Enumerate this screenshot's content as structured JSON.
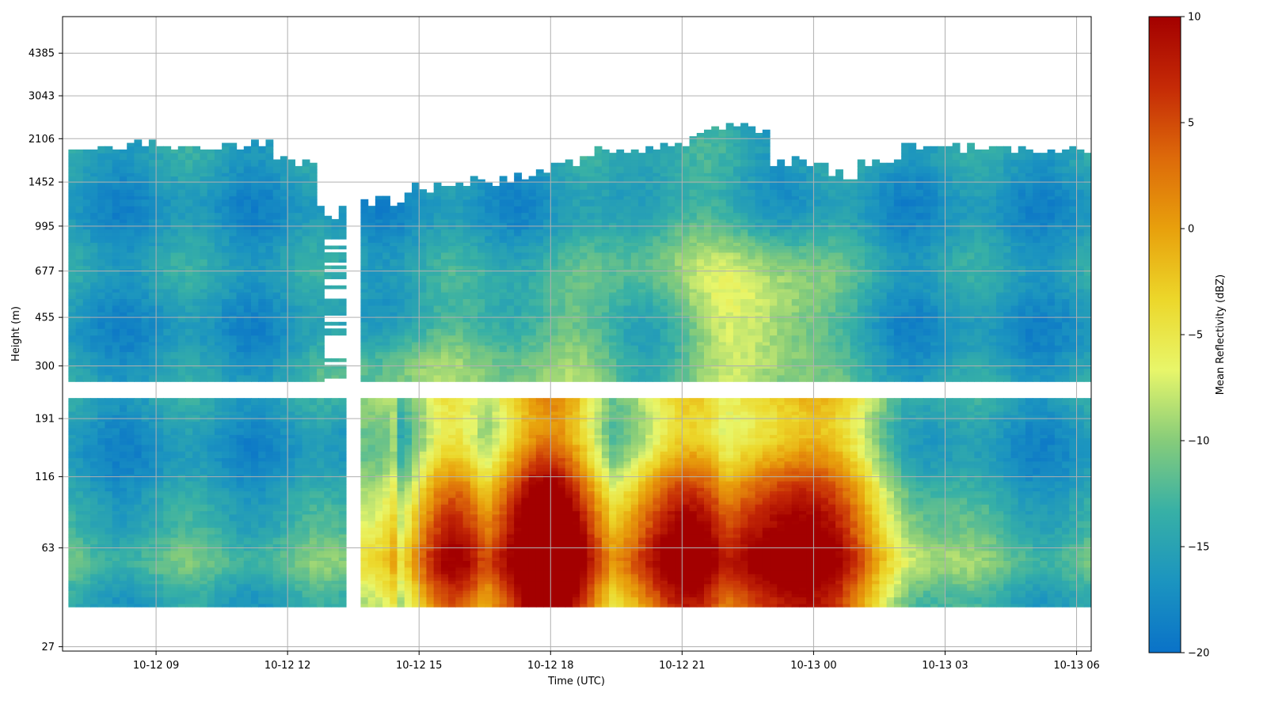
{
  "chart_data": {
    "type": "heatmap",
    "title": "",
    "xlabel": "Time (UTC)",
    "ylabel": "Height (m)",
    "x_range": [
      "10-12 06:52",
      "10-13 06:20"
    ],
    "x_tick_labels": [
      "10-12 09",
      "10-12 12",
      "10-12 15",
      "10-12 18",
      "10-12 21",
      "10-13 00",
      "10-13 03",
      "10-13 06"
    ],
    "x_tick_hours": [
      9,
      12,
      15,
      18,
      21,
      24,
      27,
      30
    ],
    "y_scale": "log",
    "y_range": [
      26,
      6000
    ],
    "y_tick_labels": [
      "27",
      "63",
      "116",
      "191",
      "300",
      "455",
      "677",
      "995",
      "1452",
      "2106",
      "3043",
      "4385"
    ],
    "y_tick_values": [
      27,
      63,
      116,
      191,
      300,
      455,
      677,
      995,
      1452,
      2106,
      3043,
      4385
    ],
    "grid": true,
    "colorbar": {
      "label": "Mean Reflectivity (dBZ)",
      "range": [
        -20,
        10
      ],
      "tick_labels": [
        "−20",
        "−15",
        "−10",
        "−5",
        "0",
        "5",
        "10"
      ],
      "tick_values": [
        -20,
        -15,
        -10,
        -5,
        0,
        5,
        10
      ],
      "colormap": [
        "#0a72c8",
        "#1b94c0",
        "#37b0a6",
        "#86cc7a",
        "#e8f66a",
        "#ecd72a",
        "#e8a00c",
        "#dd6a0a",
        "#c52a06",
        "#a30000"
      ]
    },
    "features": {
      "data_gap_height_band_m": [
        230,
        260
      ],
      "data_gap_time_hours": [
        13.3,
        13.6
      ],
      "max_reflectivity_dbz": 8,
      "max_reflectivity_time_hours": 17.9,
      "cloud_top_m_approx": 2106
    }
  }
}
